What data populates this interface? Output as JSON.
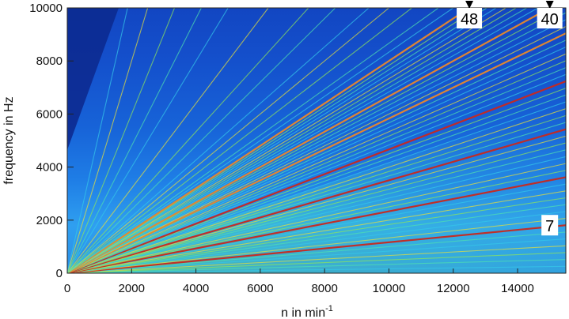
{
  "chart_data": {
    "type": "heatmap",
    "subtype": "campbell-diagram",
    "xlabel": "n in min",
    "xlabel_superscript": "-1",
    "ylabel": "frequency in Hz",
    "xlim": [
      0,
      15500
    ],
    "ylim": [
      0,
      10000
    ],
    "x_ticks": [
      0,
      2000,
      4000,
      6000,
      8000,
      10000,
      12000,
      14000
    ],
    "x_tick_labels": [
      "0",
      "2000",
      "4000",
      "6000",
      "8000",
      "10000",
      "12000",
      "14000"
    ],
    "y_ticks": [
      0,
      2000,
      4000,
      6000,
      8000,
      10000
    ],
    "y_tick_labels": [
      "0",
      "2000",
      "4000",
      "6000",
      "8000",
      "10000"
    ],
    "colormap": [
      "#0a2a8c",
      "#1450d8",
      "#1f8af0",
      "#35c7e8",
      "#4fe0b0",
      "#8ee65a",
      "#e6e03a",
      "#e8892a",
      "#c8281e"
    ],
    "highlighted_orders": [
      {
        "label": "48",
        "order": 48,
        "marker_rpm": 12500
      },
      {
        "label": "40",
        "order": 40,
        "marker_rpm": 15000
      },
      {
        "label": "7",
        "order": 7,
        "marker_rpm": 15000
      }
    ],
    "orders": [
      1,
      2,
      3,
      4,
      5,
      6,
      7,
      8,
      9,
      10,
      11,
      12,
      13,
      14,
      15,
      16,
      17,
      18,
      19,
      20,
      21,
      22,
      23,
      24,
      25,
      26,
      27,
      28,
      29,
      30,
      31,
      32,
      33,
      34,
      35,
      36,
      37,
      38,
      39,
      40,
      41,
      42,
      43,
      44,
      45,
      46,
      47,
      48,
      50,
      52,
      56,
      60,
      64,
      72,
      80,
      96,
      120,
      144,
      180,
      240,
      320
    ],
    "strong_orders": [
      7,
      14,
      21,
      28,
      35,
      40,
      48
    ]
  }
}
